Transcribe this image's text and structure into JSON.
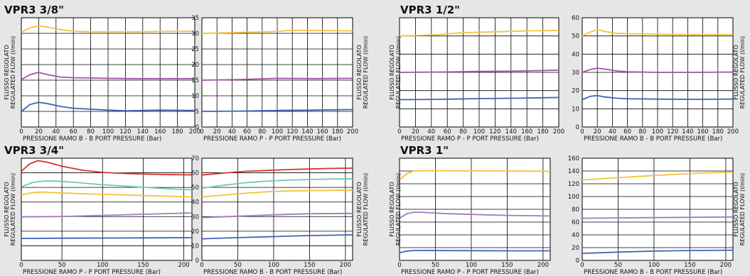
{
  "colors": {
    "background": "#e6e6e6",
    "plot_area": "#ffffff",
    "grid": "#000000",
    "yellow": "#f5c23b",
    "magenta": "#a352a7",
    "blue": "#3d63b3",
    "red": "#d8322a",
    "teal": "#6ac8b6",
    "violet": "#9f7bbb"
  },
  "y_axis_label": [
    "FLUSSO REGOLATO",
    "REGULATED FLOW (l/min)"
  ],
  "groups": [
    {
      "title": "VPR3 3/8\""
    },
    {
      "title": "VPR3 1/2\""
    },
    {
      "title": "VPR3 3/4\""
    },
    {
      "title": "VPR3 1\""
    }
  ],
  "chart_data": [
    {
      "type": "line",
      "group": 0,
      "xlabel": "PRESSIONE RAMO B - B PORT PRESSURE (Bar)",
      "xlim": [
        0,
        200
      ],
      "ylim": [
        0,
        35
      ],
      "xticks": [
        0,
        20,
        40,
        60,
        80,
        100,
        120,
        140,
        160,
        180,
        200
      ],
      "yticks": [
        0,
        5,
        10,
        15,
        20,
        25,
        30,
        35
      ],
      "show_y_ticklabels": false,
      "series": [
        {
          "color": "yellow",
          "x": [
            0,
            10,
            20,
            30,
            45,
            60,
            80,
            100,
            130,
            160,
            200
          ],
          "y": [
            30.3,
            31.8,
            32.4,
            32.0,
            31.2,
            30.7,
            30.5,
            30.5,
            30.5,
            30.6,
            30.7
          ]
        },
        {
          "color": "magenta",
          "x": [
            0,
            10,
            20,
            30,
            45,
            60,
            80,
            100,
            130,
            160,
            200
          ],
          "y": [
            15.2,
            16.8,
            17.5,
            16.8,
            16.0,
            15.8,
            15.7,
            15.6,
            15.5,
            15.5,
            15.5
          ]
        },
        {
          "color": "blue",
          "x": [
            0,
            10,
            20,
            30,
            45,
            60,
            80,
            100,
            120,
            140,
            160,
            200
          ],
          "y": [
            5.0,
            7.2,
            7.9,
            7.5,
            6.6,
            6.0,
            5.7,
            5.4,
            5.2,
            5.3,
            5.4,
            5.3
          ]
        }
      ]
    },
    {
      "type": "line",
      "group": 0,
      "xlabel": "PRESSIONE RAMO P - P PORT PRESSURE (Bar)",
      "xlim": [
        0,
        200
      ],
      "ylim": [
        0,
        35
      ],
      "xticks": [
        0,
        20,
        40,
        60,
        80,
        100,
        120,
        140,
        160,
        180,
        200
      ],
      "yticks": [
        0,
        5,
        10,
        15,
        20,
        25,
        30,
        35
      ],
      "show_y_ticklabels": true,
      "series": [
        {
          "color": "yellow",
          "x": [
            0,
            50,
            100,
            120,
            150,
            200
          ],
          "y": [
            30.0,
            30.3,
            30.6,
            31.0,
            30.9,
            30.8
          ]
        },
        {
          "color": "magenta",
          "x": [
            0,
            50,
            100,
            150,
            200
          ],
          "y": [
            15.0,
            15.2,
            15.6,
            15.5,
            15.6
          ]
        },
        {
          "color": "blue",
          "x": [
            0,
            50,
            100,
            150,
            200
          ],
          "y": [
            5.0,
            5.1,
            5.3,
            5.4,
            5.6
          ]
        }
      ]
    },
    {
      "type": "line",
      "group": 1,
      "xlabel": "PRESSIONE RAMO P - P PORT PRESSURE (Bar)",
      "xlim": [
        0,
        200
      ],
      "ylim": [
        0,
        60
      ],
      "xticks": [
        0,
        20,
        40,
        60,
        80,
        100,
        120,
        140,
        160,
        180,
        200
      ],
      "yticks": [
        0,
        10,
        20,
        30,
        40,
        50,
        60
      ],
      "show_y_ticklabels": false,
      "series": [
        {
          "color": "yellow",
          "x": [
            0,
            40,
            80,
            120,
            160,
            200
          ],
          "y": [
            50.0,
            50.5,
            51.8,
            52.3,
            52.8,
            53.0
          ]
        },
        {
          "color": "magenta",
          "x": [
            0,
            50,
            100,
            150,
            200
          ],
          "y": [
            30.0,
            30.2,
            30.5,
            30.7,
            31.2
          ]
        },
        {
          "color": "blue",
          "x": [
            0,
            50,
            100,
            150,
            200
          ],
          "y": [
            15.0,
            15.2,
            15.6,
            15.8,
            16.2
          ]
        }
      ]
    },
    {
      "type": "line",
      "group": 1,
      "xlabel": "PRESSIONE RAMO B - B PORT PRESSURE (Bar)",
      "xlim": [
        0,
        200
      ],
      "ylim": [
        0,
        60
      ],
      "xticks": [
        0,
        20,
        40,
        60,
        80,
        100,
        120,
        140,
        160,
        180,
        200
      ],
      "yticks": [
        0,
        10,
        20,
        30,
        40,
        50,
        60
      ],
      "show_y_ticklabels": true,
      "series": [
        {
          "color": "yellow",
          "x": [
            0,
            10,
            20,
            30,
            45,
            60,
            100,
            150,
            200
          ],
          "y": [
            50.0,
            52.0,
            53.5,
            52.5,
            51.5,
            51.2,
            51.0,
            50.8,
            50.8
          ]
        },
        {
          "color": "magenta",
          "x": [
            0,
            10,
            20,
            30,
            45,
            60,
            100,
            150,
            200
          ],
          "y": [
            30.0,
            31.5,
            32.3,
            31.8,
            30.8,
            30.3,
            30.0,
            30.0,
            30.2
          ]
        },
        {
          "color": "blue",
          "x": [
            0,
            10,
            20,
            30,
            45,
            60,
            100,
            150,
            200
          ],
          "y": [
            15.0,
            16.8,
            17.3,
            16.5,
            15.8,
            15.5,
            15.3,
            15.2,
            15.3
          ]
        }
      ]
    },
    {
      "type": "line",
      "group": 2,
      "xlabel": "PRESSIONE RAMO P - P PORT PRESSURE (Bar)",
      "xlim": [
        0,
        210
      ],
      "ylim": [
        0,
        70
      ],
      "xticks": [
        0,
        50,
        100,
        150,
        200
      ],
      "yticks": [
        0,
        10,
        20,
        30,
        40,
        50,
        60,
        70
      ],
      "show_y_ticklabels": false,
      "series": [
        {
          "color": "red",
          "x": [
            0,
            10,
            20,
            30,
            50,
            75,
            100,
            130,
            160,
            190,
            210
          ],
          "y": [
            61.0,
            66.0,
            68.3,
            67.5,
            64.5,
            61.8,
            60.3,
            59.5,
            59.0,
            58.7,
            58.6
          ]
        },
        {
          "color": "teal",
          "x": [
            0,
            15,
            30,
            45,
            70,
            100,
            130,
            160,
            190,
            210
          ],
          "y": [
            50.5,
            53.5,
            54.5,
            54.3,
            53.3,
            51.8,
            50.8,
            49.8,
            48.8,
            48.3
          ]
        },
        {
          "color": "yellow",
          "x": [
            0,
            15,
            25,
            45,
            70,
            100,
            130,
            160,
            190,
            210
          ],
          "y": [
            44.8,
            46.5,
            46.8,
            46.3,
            45.8,
            45.2,
            44.8,
            44.3,
            43.8,
            43.4
          ]
        },
        {
          "color": "violet",
          "x": [
            0,
            50,
            100,
            150,
            210
          ],
          "y": [
            29.8,
            30.1,
            30.8,
            31.6,
            32.5
          ]
        },
        {
          "color": "blue",
          "x": [
            0,
            50,
            100,
            150,
            210
          ],
          "y": [
            15.0,
            15.2,
            15.3,
            15.4,
            15.6
          ]
        }
      ]
    },
    {
      "type": "line",
      "group": 2,
      "xlabel": "PRESSIONE RAMO B - B PORT PRESSURE (Bar)",
      "xlim": [
        0,
        210
      ],
      "ylim": [
        0,
        70
      ],
      "xticks": [
        0,
        50,
        100,
        150,
        200
      ],
      "yticks": [
        0,
        10,
        20,
        30,
        40,
        50,
        60,
        70
      ],
      "show_y_ticklabels": true,
      "series": [
        {
          "color": "red",
          "x": [
            0,
            30,
            60,
            90,
            120,
            150,
            180,
            210
          ],
          "y": [
            58.5,
            59.8,
            61.0,
            61.6,
            62.2,
            62.6,
            63.0,
            63.2
          ]
        },
        {
          "color": "teal",
          "x": [
            0,
            30,
            60,
            90,
            120,
            150,
            180,
            210
          ],
          "y": [
            49.5,
            51.5,
            53.2,
            54.3,
            55.0,
            55.4,
            55.7,
            56.0
          ]
        },
        {
          "color": "yellow",
          "x": [
            0,
            30,
            60,
            90,
            120,
            150,
            180,
            210
          ],
          "y": [
            43.5,
            44.7,
            46.0,
            47.0,
            47.6,
            47.8,
            48.0,
            48.2
          ]
        },
        {
          "color": "violet",
          "x": [
            0,
            50,
            100,
            150,
            210
          ],
          "y": [
            29.3,
            30.3,
            31.2,
            32.0,
            32.2
          ]
        },
        {
          "color": "blue",
          "x": [
            0,
            50,
            100,
            150,
            210
          ],
          "y": [
            14.8,
            15.6,
            16.3,
            17.0,
            17.5
          ]
        }
      ]
    },
    {
      "type": "line",
      "group": 3,
      "xlabel": "PRESSIONE RAMO P - P PORT PRESSURE (Bar)",
      "xlim": [
        0,
        210
      ],
      "ylim": [
        0,
        160
      ],
      "xticks": [
        0,
        50,
        100,
        150,
        200
      ],
      "yticks": [
        0,
        20,
        40,
        60,
        80,
        100,
        120,
        140,
        160
      ],
      "show_y_ticklabels": false,
      "series": [
        {
          "color": "yellow",
          "x": [
            0,
            10,
            20,
            30,
            60,
            100,
            150,
            210
          ],
          "y": [
            126.0,
            136.0,
            140.0,
            140.5,
            140.3,
            140.2,
            140.0,
            139.5
          ]
        },
        {
          "color": "violet",
          "x": [
            0,
            10,
            20,
            30,
            60,
            100,
            150,
            210
          ],
          "y": [
            66.0,
            73.0,
            75.5,
            75.5,
            73.5,
            72.0,
            70.5,
            69.5
          ]
        },
        {
          "color": "blue",
          "x": [
            0,
            10,
            20,
            30,
            60,
            100,
            150,
            210
          ],
          "y": [
            12.0,
            14.5,
            15.5,
            15.6,
            15.3,
            15.2,
            15.0,
            15.0
          ]
        }
      ]
    },
    {
      "type": "line",
      "group": 3,
      "xlabel": "PRESSIONE RAMO B - B PORT PRESSURE (Bar)",
      "xlim": [
        0,
        210
      ],
      "ylim": [
        0,
        160
      ],
      "xticks": [
        0,
        50,
        100,
        150,
        200
      ],
      "yticks": [
        0,
        20,
        40,
        60,
        80,
        100,
        120,
        140,
        160
      ],
      "show_y_ticklabels": true,
      "series": [
        {
          "color": "yellow",
          "x": [
            0,
            50,
            100,
            150,
            210
          ],
          "y": [
            126.0,
            129.5,
            133.0,
            136.0,
            138.5
          ]
        },
        {
          "color": "violet",
          "x": [
            0,
            50,
            100,
            150,
            210
          ],
          "y": [
            66.0,
            66.5,
            67.0,
            67.5,
            68.0
          ]
        },
        {
          "color": "blue",
          "x": [
            0,
            50,
            100,
            150,
            210
          ],
          "y": [
            11.0,
            13.0,
            14.5,
            15.5,
            16.0
          ]
        }
      ]
    }
  ]
}
